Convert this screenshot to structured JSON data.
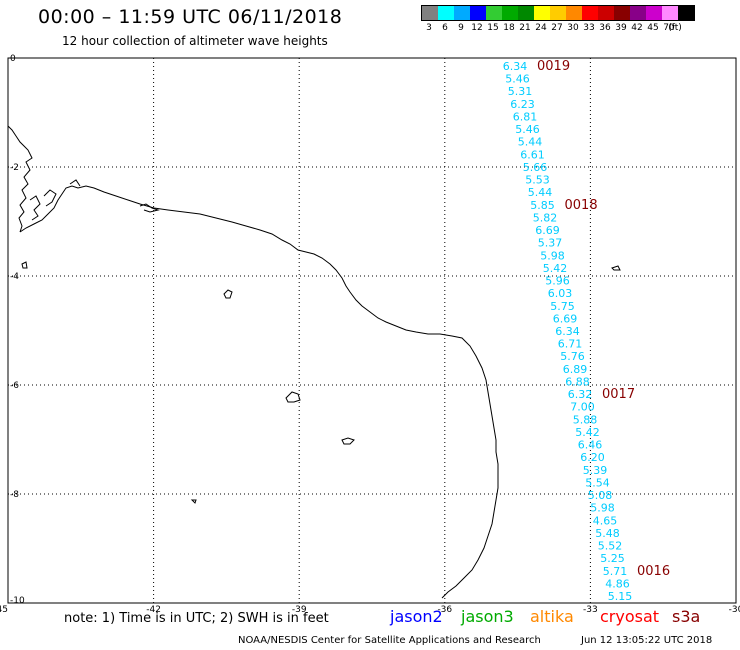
{
  "header": {
    "title": "00:00 – 11:59 UTC 06/11/2018",
    "subtitle": "12 hour collection of altimeter wave heights"
  },
  "legend": {
    "unit": "(ft)",
    "items": [
      {
        "label": "3",
        "color": "#808080"
      },
      {
        "label": "6",
        "color": "#00ffff"
      },
      {
        "label": "9",
        "color": "#00aaff"
      },
      {
        "label": "12",
        "color": "#0000ff"
      },
      {
        "label": "15",
        "color": "#33cc33"
      },
      {
        "label": "18",
        "color": "#00aa00"
      },
      {
        "label": "21",
        "color": "#008800"
      },
      {
        "label": "24",
        "color": "#ffff00"
      },
      {
        "label": "27",
        "color": "#ffcc00"
      },
      {
        "label": "30",
        "color": "#ff8800"
      },
      {
        "label": "33",
        "color": "#ff0000"
      },
      {
        "label": "36",
        "color": "#cc0000"
      },
      {
        "label": "39",
        "color": "#880000"
      },
      {
        "label": "42",
        "color": "#880088"
      },
      {
        "label": "45",
        "color": "#cc00cc"
      },
      {
        "label": "70",
        "color": "#ff88ff"
      },
      {
        "label": "",
        "color": "#000000"
      }
    ]
  },
  "axes": {
    "x_ticks": [
      "-45",
      "-42",
      "-39",
      "-36",
      "-33",
      "-30"
    ],
    "y_ticks": [
      "0",
      "-2",
      "-4",
      "-6",
      "-8",
      "-10"
    ]
  },
  "track": {
    "color": "#00ccff",
    "time_color": "#880000",
    "values": [
      "6.34",
      "5.46",
      "5.31",
      "6.23",
      "6.81",
      "5.46",
      "5.44",
      "6.61",
      "5.66",
      "5.53",
      "5.44",
      "5.85",
      "5.82",
      "6.69",
      "5.37",
      "5.98",
      "5.42",
      "5.96",
      "6.03",
      "5.75",
      "6.69",
      "6.34",
      "6.71",
      "5.76",
      "6.89",
      "6.88",
      "6.32",
      "7.00",
      "5.88",
      "5.42",
      "6.46",
      "6.20",
      "5.39",
      "5.54",
      "5.08",
      "5.98",
      "4.65",
      "5.48",
      "5.52",
      "5.25",
      "5.71",
      "4.86",
      "5.15"
    ],
    "times": [
      {
        "label": "0019",
        "index": 0
      },
      {
        "label": "0018",
        "index": 11
      },
      {
        "label": "0017",
        "index": 26
      },
      {
        "label": "0016",
        "index": 40
      }
    ]
  },
  "footer": {
    "note": "note: 1) Time is in UTC; 2) SWH is in feet",
    "satellites": [
      {
        "name": "jason2",
        "color": "#0000ff"
      },
      {
        "name": "jason3",
        "color": "#00aa00"
      },
      {
        "name": "altika",
        "color": "#ff8800"
      },
      {
        "name": "cryosat",
        "color": "#ff0000"
      },
      {
        "name": "s3a",
        "color": "#880000"
      }
    ],
    "credit": "NOAA/NESDIS Center for Satellite Applications and Research",
    "timestamp": "Jun 12 13:05:22 UTC 2018"
  }
}
